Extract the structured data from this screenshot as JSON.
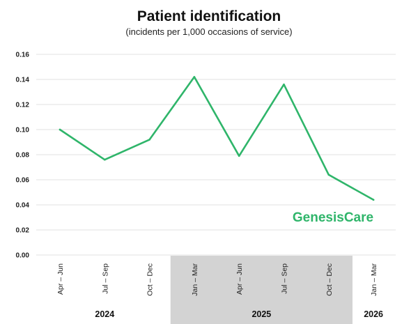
{
  "chart_data": {
    "type": "line",
    "title": "Patient identification",
    "subtitle": "(incidents per 1,000 occasions of service)",
    "categories": [
      "Apr – Jun",
      "Jul – Sep",
      "Oct – Dec",
      "Jan – Mar",
      "Apr – Jun",
      "Jul – Sep",
      "Oct – Dec",
      "Jan – Mar"
    ],
    "groups": [
      {
        "label": "2024",
        "start": 0,
        "end": 2,
        "shaded": false
      },
      {
        "label": "2025",
        "start": 3,
        "end": 6,
        "shaded": true
      },
      {
        "label": "2026",
        "start": 7,
        "end": 7,
        "shaded": false
      }
    ],
    "series": [
      {
        "values": [
          0.1,
          0.076,
          0.092,
          0.142,
          0.079,
          0.136,
          0.064,
          0.044
        ]
      }
    ],
    "ylim": [
      0,
      0.16
    ],
    "yticks": [
      "0.00",
      "0.02",
      "0.04",
      "0.06",
      "0.08",
      "0.10",
      "0.12",
      "0.14",
      "0.16"
    ],
    "grid": true,
    "xlabel": "",
    "ylabel": "",
    "colors": {
      "line": "#2fb56a",
      "grid": "#e2e2e2",
      "shade": "#d3d3d3"
    }
  },
  "brand": {
    "logo_text": "GenesisCare"
  }
}
